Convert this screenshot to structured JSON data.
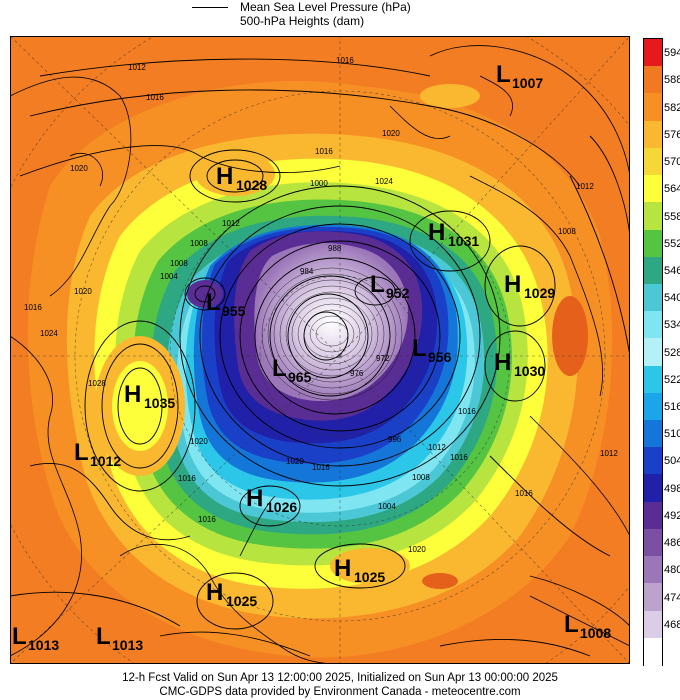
{
  "legend": {
    "line1": "Mean Sea Level Pressure (hPa)",
    "line2": "500-hPa Heights (dam)"
  },
  "colorbar": {
    "labels": [
      "594",
      "588",
      "582",
      "576",
      "570",
      "564",
      "558",
      "552",
      "546",
      "540",
      "534",
      "528",
      "522",
      "516",
      "510",
      "504",
      "498",
      "492",
      "486",
      "480",
      "474",
      "468"
    ],
    "colors": [
      "#e41a1c",
      "#f07a21",
      "#f68f24",
      "#f9b830",
      "#f5d838",
      "#fcff3a",
      "#b8e43f",
      "#54c442",
      "#2ea882",
      "#4cc7d5",
      "#7fe6f1",
      "#b3f1f7",
      "#2bc6e8",
      "#1aa6e8",
      "#1476d8",
      "#1a40c8",
      "#2020a8",
      "#5a2d94",
      "#7a4fa4",
      "#9b76b8",
      "#bba3cc",
      "#dccde6",
      "#ffffff"
    ]
  },
  "centres": [
    {
      "letter": "L",
      "value": "1007"
    },
    {
      "letter": "H",
      "value": "1028"
    },
    {
      "letter": "H",
      "value": "1031"
    },
    {
      "letter": "H",
      "value": "1029"
    },
    {
      "letter": "L",
      "value": "955"
    },
    {
      "letter": "L",
      "value": "952"
    },
    {
      "letter": "L",
      "value": "956"
    },
    {
      "letter": "H",
      "value": "1030"
    },
    {
      "letter": "L",
      "value": "965"
    },
    {
      "letter": "H",
      "value": "1035"
    },
    {
      "letter": "L",
      "value": "1012"
    },
    {
      "letter": "H",
      "value": "1026"
    },
    {
      "letter": "H",
      "value": "1025"
    },
    {
      "letter": "H",
      "value": "1025"
    },
    {
      "letter": "L",
      "value": "1013"
    },
    {
      "letter": "L",
      "value": "1013"
    },
    {
      "letter": "L",
      "value": "1008"
    }
  ],
  "isobar_labels": [
    "1012",
    "1016",
    "1016",
    "1020",
    "1012",
    "1020",
    "1016",
    "1008",
    "1024",
    "1012",
    "1008",
    "1004",
    "1000",
    "996",
    "1016",
    "1020",
    "1024",
    "1028",
    "1016",
    "1016",
    "1020",
    "1016",
    "1004",
    "1008",
    "1012",
    "1016",
    "1020",
    "1016",
    "1012",
    "1008",
    "1016",
    "1020",
    "984",
    "988",
    "976",
    "972"
  ],
  "footer": {
    "line1": "12-h Fcst Valid on Sun Apr 13 12:00:00 2025, Initialized on Sun Apr 13 00:00:00 2025",
    "line2": "CMC-GDPS data provided by Environment Canada - meteocentre.com"
  }
}
